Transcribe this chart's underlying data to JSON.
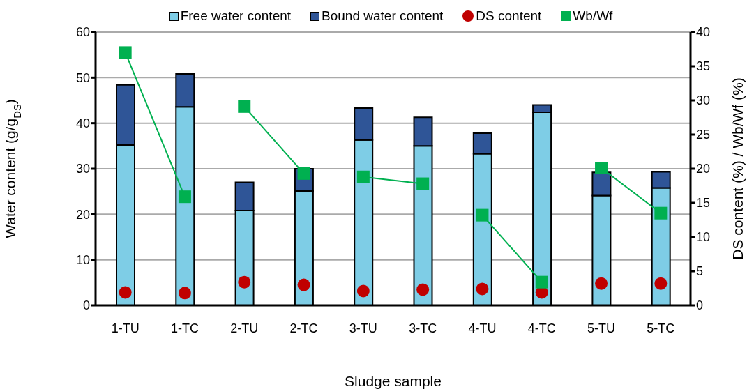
{
  "chart_data": {
    "type": "bar",
    "stacked": true,
    "xlabel": "Sludge sample",
    "ylabel": "Water content (g/g$_{DS}$)",
    "y2label": "DS content (%) / Wb/Wf (%)",
    "categories": [
      "1-TU",
      "1-TC",
      "2-TU",
      "2-TC",
      "3-TU",
      "3-TC",
      "4-TU",
      "4-TC",
      "5-TU",
      "5-TC"
    ],
    "series": [
      {
        "name": "Free water content",
        "color": "#7ecde6",
        "values": [
          35.2,
          43.6,
          20.8,
          25.1,
          36.3,
          35.0,
          33.3,
          42.4,
          24.1,
          25.8
        ]
      },
      {
        "name": "Bound water content",
        "color": "#2f5597",
        "values": [
          13.2,
          7.2,
          6.2,
          4.9,
          7.0,
          6.3,
          4.5,
          1.6,
          5.1,
          3.5
        ]
      },
      {
        "name": "DS content",
        "type": "scatter",
        "axis": "y2",
        "marker": "circle",
        "color": "#c00000",
        "values": [
          1.9,
          1.8,
          3.4,
          3.0,
          2.1,
          2.3,
          2.4,
          1.9,
          3.2,
          3.2
        ]
      },
      {
        "name": "Wb/Wf",
        "type": "line",
        "axis": "y2",
        "marker": "square",
        "color": "#00b050",
        "values": [
          37.0,
          15.9,
          null,
          null,
          null,
          null,
          null,
          null,
          null,
          null
        ]
      },
      {
        "type": "line",
        "axis": "y2",
        "marker": "square",
        "color": "#00b050",
        "values": [
          null,
          null,
          29.1,
          19.3,
          null,
          null,
          null,
          null,
          null,
          null
        ]
      },
      {
        "type": "line",
        "axis": "y2",
        "marker": "square",
        "color": "#00b050",
        "values": [
          null,
          null,
          null,
          null,
          18.8,
          17.8,
          null,
          null,
          null,
          null
        ]
      },
      {
        "type": "line",
        "axis": "y2",
        "marker": "square",
        "color": "#00b050",
        "values": [
          null,
          null,
          null,
          null,
          null,
          null,
          13.2,
          3.4,
          null,
          null
        ]
      },
      {
        "type": "line",
        "axis": "y2",
        "marker": "square",
        "color": "#00b050",
        "values": [
          null,
          null,
          null,
          null,
          null,
          null,
          null,
          null,
          20.1,
          13.5
        ]
      }
    ],
    "ylim": [
      0,
      60
    ],
    "yticks": [
      0,
      10,
      20,
      30,
      40,
      50,
      60
    ],
    "y2lim": [
      0,
      40
    ],
    "y2ticks": [
      0,
      5,
      10,
      15,
      20,
      25,
      30,
      35,
      40
    ],
    "grid": "y",
    "legend": "top"
  }
}
